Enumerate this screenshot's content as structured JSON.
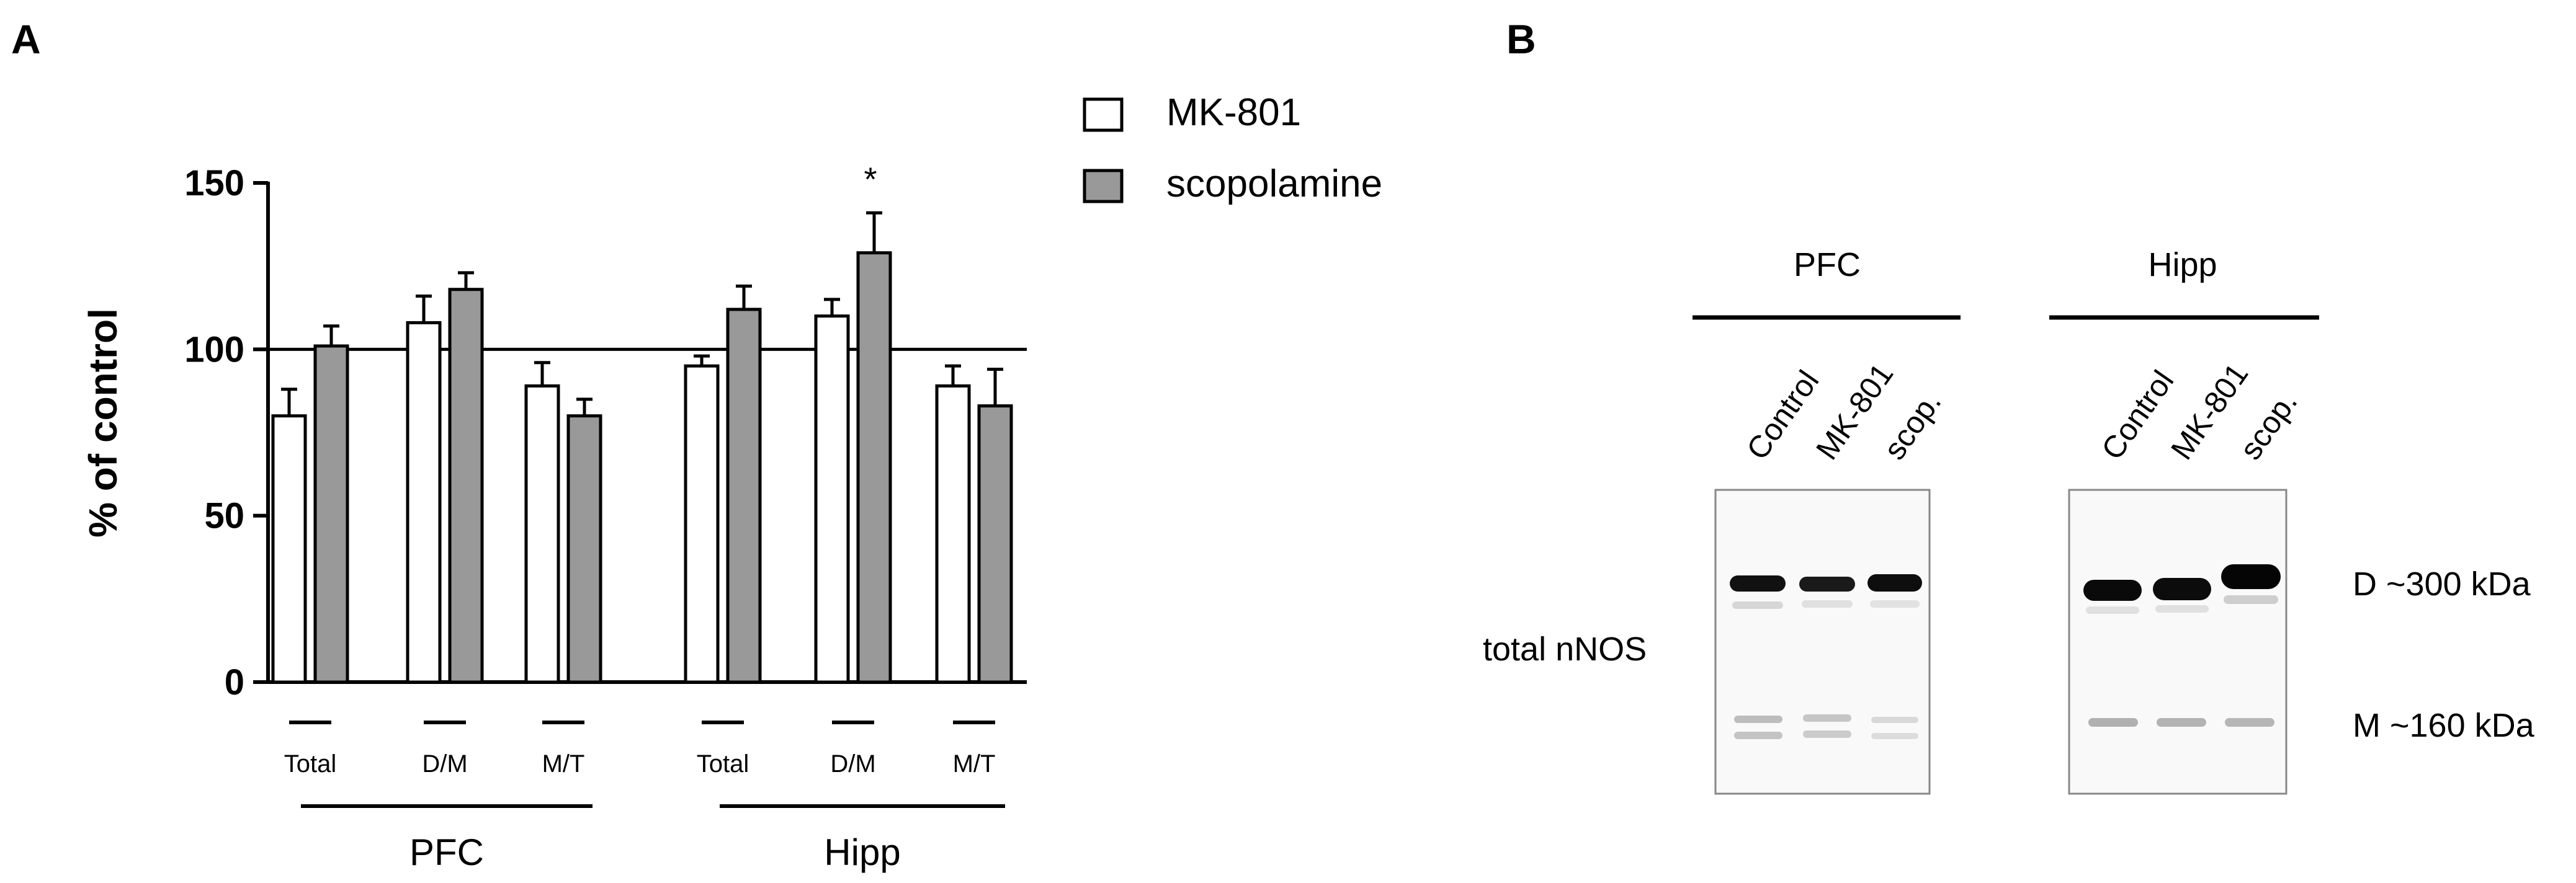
{
  "panels": {
    "a_label": "A",
    "b_label": "B"
  },
  "chart_data": {
    "type": "bar",
    "ylabel": "% of control",
    "ylim": [
      0,
      150
    ],
    "yticks": [
      0,
      50,
      100,
      150
    ],
    "reference_line": 100,
    "legend_placement": "top-right",
    "legend": [
      {
        "name": "MK-801",
        "color": "#ffffff"
      },
      {
        "name": "scopolamine",
        "color": "#999999"
      }
    ],
    "groups": [
      {
        "name": "PFC",
        "categories": [
          "Total",
          "D/M",
          "M/T"
        ]
      },
      {
        "name": "Hipp",
        "categories": [
          "Total",
          "D/M",
          "M/T"
        ]
      }
    ],
    "series": [
      {
        "name": "MK-801",
        "values": [
          80,
          108,
          89,
          95,
          110,
          89
        ],
        "errors": [
          8,
          8,
          7,
          3,
          5,
          6
        ]
      },
      {
        "name": "scopolamine",
        "values": [
          101,
          118,
          80,
          112,
          129,
          83
        ],
        "errors": [
          6,
          5,
          5,
          7,
          12,
          11
        ]
      }
    ],
    "annotations": [
      {
        "category_index": 4,
        "series": "scopolamine",
        "text": "*"
      }
    ]
  },
  "blot": {
    "groups": [
      "PFC",
      "Hipp"
    ],
    "lanes": [
      "Control",
      "MK-801",
      "scop."
    ],
    "row_label": "total nNOS",
    "band_labels": [
      "D ~300 kDa",
      "M ~160 kDa"
    ]
  }
}
